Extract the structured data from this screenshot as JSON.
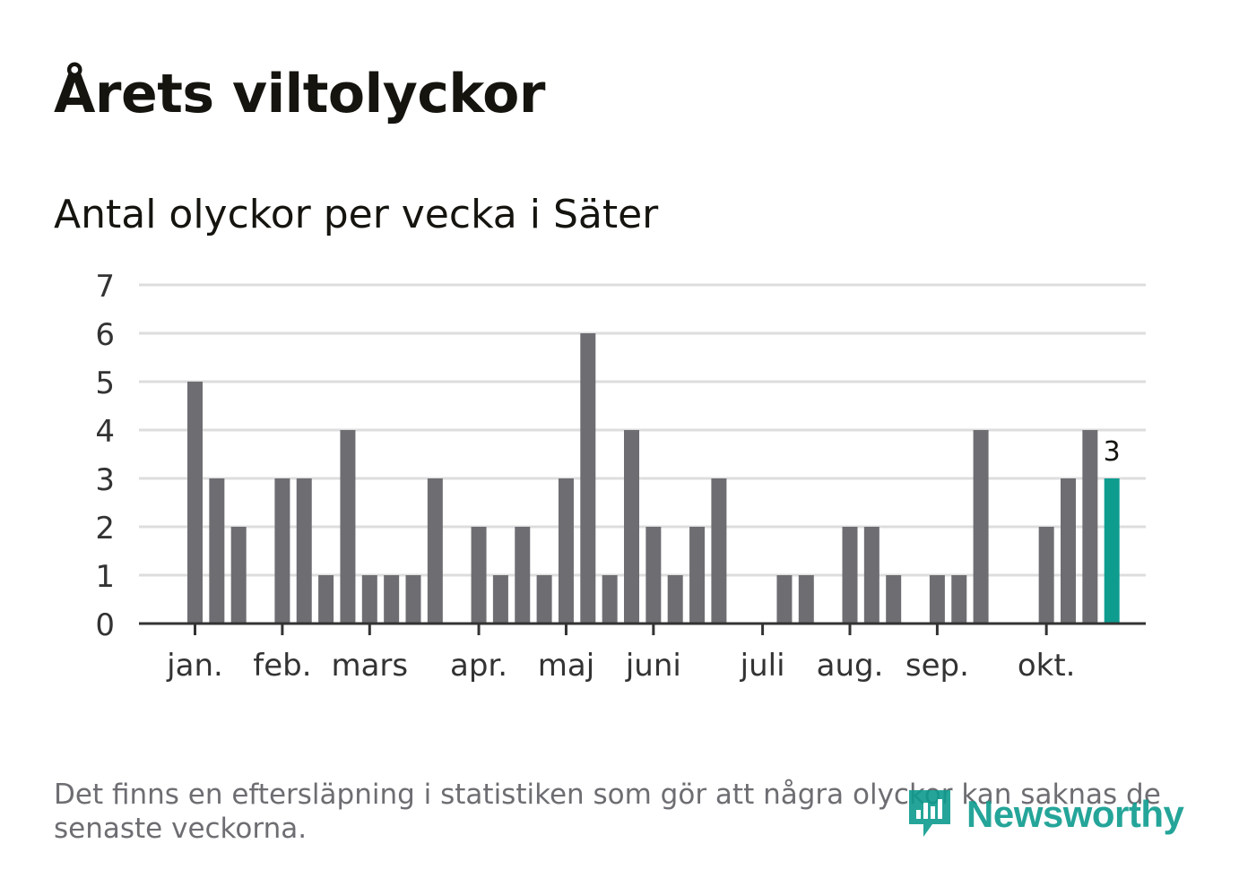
{
  "header": {
    "title": "Årets viltolyckor",
    "subtitle": "Antal olyckor per vecka i Säter"
  },
  "footnote": "Det finns en eftersläpning i statistiken som gör att några olyckor kan saknas de senaste veckorna.",
  "brand": {
    "name": "Newsworthy",
    "icon": "newsworthy-logo-icon",
    "color": "#0e9c8f"
  },
  "chart_data": {
    "type": "bar",
    "title": "Antal olyckor per vecka i Säter",
    "xlabel": "",
    "ylabel": "",
    "ylim": [
      0,
      7
    ],
    "yticks": [
      0,
      1,
      2,
      3,
      4,
      5,
      6,
      7
    ],
    "grid": true,
    "weeks": [
      1,
      2,
      3,
      4,
      5,
      6,
      7,
      8,
      9,
      10,
      11,
      12,
      13,
      14,
      15,
      16,
      17,
      18,
      19,
      20,
      21,
      22,
      23,
      24,
      25,
      26,
      27,
      28,
      29,
      30,
      31,
      32,
      33,
      34,
      35,
      36,
      37,
      38,
      39,
      40,
      41,
      42,
      43
    ],
    "values": [
      5,
      3,
      2,
      0,
      3,
      3,
      1,
      4,
      1,
      1,
      1,
      3,
      0,
      2,
      1,
      2,
      1,
      3,
      6,
      1,
      4,
      2,
      1,
      2,
      3,
      0,
      0,
      1,
      1,
      0,
      2,
      2,
      1,
      0,
      1,
      1,
      4,
      0,
      0,
      2,
      3,
      4,
      3
    ],
    "month_ticks": [
      {
        "label": "jan.",
        "week": 1
      },
      {
        "label": "feb.",
        "week": 5
      },
      {
        "label": "mars",
        "week": 9
      },
      {
        "label": "apr.",
        "week": 14
      },
      {
        "label": "maj",
        "week": 18
      },
      {
        "label": "juni",
        "week": 22
      },
      {
        "label": "juli",
        "week": 27
      },
      {
        "label": "aug.",
        "week": 31
      },
      {
        "label": "sep.",
        "week": 35
      },
      {
        "label": "okt.",
        "week": 40
      }
    ],
    "bar_color": "#6e6d72",
    "highlight_color": "#0e9c8f",
    "highlight_week": 43,
    "highlight_label": "3"
  }
}
